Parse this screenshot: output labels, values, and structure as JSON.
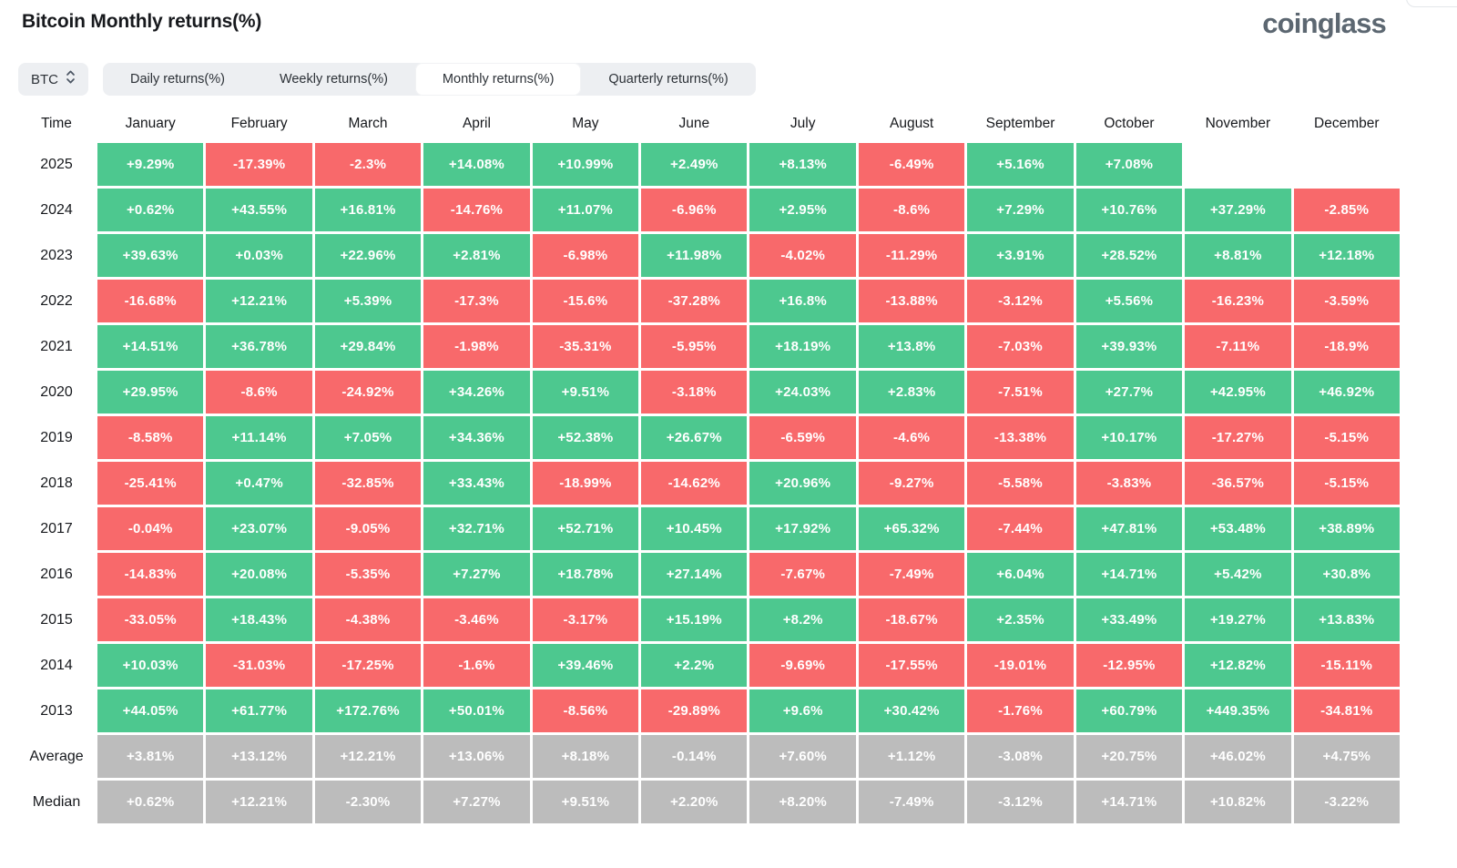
{
  "header": {
    "title": "Bitcoin Monthly returns(%)",
    "logo_text": "coinglass"
  },
  "controls": {
    "symbol": "BTC",
    "tabs": [
      {
        "label": "Daily returns(%)",
        "active": false
      },
      {
        "label": "Weekly returns(%)",
        "active": false
      },
      {
        "label": "Monthly returns(%)",
        "active": true
      },
      {
        "label": "Quarterly returns(%)",
        "active": false
      }
    ]
  },
  "colors": {
    "positive": "#4dc88f",
    "negative": "#f8696b",
    "summary": "#bcbcbc"
  },
  "table": {
    "corner_label": "Time",
    "months": [
      "January",
      "February",
      "March",
      "April",
      "May",
      "June",
      "July",
      "August",
      "September",
      "October",
      "November",
      "December"
    ],
    "rows": [
      {
        "label": "2025",
        "type": "year",
        "values": [
          "+9.29%",
          "-17.39%",
          "-2.3%",
          "+14.08%",
          "+10.99%",
          "+2.49%",
          "+8.13%",
          "-6.49%",
          "+5.16%",
          "+7.08%",
          "",
          ""
        ]
      },
      {
        "label": "2024",
        "type": "year",
        "values": [
          "+0.62%",
          "+43.55%",
          "+16.81%",
          "-14.76%",
          "+11.07%",
          "-6.96%",
          "+2.95%",
          "-8.6%",
          "+7.29%",
          "+10.76%",
          "+37.29%",
          "-2.85%"
        ]
      },
      {
        "label": "2023",
        "type": "year",
        "values": [
          "+39.63%",
          "+0.03%",
          "+22.96%",
          "+2.81%",
          "-6.98%",
          "+11.98%",
          "-4.02%",
          "-11.29%",
          "+3.91%",
          "+28.52%",
          "+8.81%",
          "+12.18%"
        ]
      },
      {
        "label": "2022",
        "type": "year",
        "values": [
          "-16.68%",
          "+12.21%",
          "+5.39%",
          "-17.3%",
          "-15.6%",
          "-37.28%",
          "+16.8%",
          "-13.88%",
          "-3.12%",
          "+5.56%",
          "-16.23%",
          "-3.59%"
        ]
      },
      {
        "label": "2021",
        "type": "year",
        "values": [
          "+14.51%",
          "+36.78%",
          "+29.84%",
          "-1.98%",
          "-35.31%",
          "-5.95%",
          "+18.19%",
          "+13.8%",
          "-7.03%",
          "+39.93%",
          "-7.11%",
          "-18.9%"
        ]
      },
      {
        "label": "2020",
        "type": "year",
        "values": [
          "+29.95%",
          "-8.6%",
          "-24.92%",
          "+34.26%",
          "+9.51%",
          "-3.18%",
          "+24.03%",
          "+2.83%",
          "-7.51%",
          "+27.7%",
          "+42.95%",
          "+46.92%"
        ]
      },
      {
        "label": "2019",
        "type": "year",
        "values": [
          "-8.58%",
          "+11.14%",
          "+7.05%",
          "+34.36%",
          "+52.38%",
          "+26.67%",
          "-6.59%",
          "-4.6%",
          "-13.38%",
          "+10.17%",
          "-17.27%",
          "-5.15%"
        ]
      },
      {
        "label": "2018",
        "type": "year",
        "values": [
          "-25.41%",
          "+0.47%",
          "-32.85%",
          "+33.43%",
          "-18.99%",
          "-14.62%",
          "+20.96%",
          "-9.27%",
          "-5.58%",
          "-3.83%",
          "-36.57%",
          "-5.15%"
        ]
      },
      {
        "label": "2017",
        "type": "year",
        "values": [
          "-0.04%",
          "+23.07%",
          "-9.05%",
          "+32.71%",
          "+52.71%",
          "+10.45%",
          "+17.92%",
          "+65.32%",
          "-7.44%",
          "+47.81%",
          "+53.48%",
          "+38.89%"
        ]
      },
      {
        "label": "2016",
        "type": "year",
        "values": [
          "-14.83%",
          "+20.08%",
          "-5.35%",
          "+7.27%",
          "+18.78%",
          "+27.14%",
          "-7.67%",
          "-7.49%",
          "+6.04%",
          "+14.71%",
          "+5.42%",
          "+30.8%"
        ]
      },
      {
        "label": "2015",
        "type": "year",
        "values": [
          "-33.05%",
          "+18.43%",
          "-4.38%",
          "-3.46%",
          "-3.17%",
          "+15.19%",
          "+8.2%",
          "-18.67%",
          "+2.35%",
          "+33.49%",
          "+19.27%",
          "+13.83%"
        ]
      },
      {
        "label": "2014",
        "type": "year",
        "values": [
          "+10.03%",
          "-31.03%",
          "-17.25%",
          "-1.6%",
          "+39.46%",
          "+2.2%",
          "-9.69%",
          "-17.55%",
          "-19.01%",
          "-12.95%",
          "+12.82%",
          "-15.11%"
        ]
      },
      {
        "label": "2013",
        "type": "year",
        "values": [
          "+44.05%",
          "+61.77%",
          "+172.76%",
          "+50.01%",
          "-8.56%",
          "-29.89%",
          "+9.6%",
          "+30.42%",
          "-1.76%",
          "+60.79%",
          "+449.35%",
          "-34.81%"
        ]
      },
      {
        "label": "Average",
        "type": "summary",
        "values": [
          "+3.81%",
          "+13.12%",
          "+12.21%",
          "+13.06%",
          "+8.18%",
          "-0.14%",
          "+7.60%",
          "+1.12%",
          "-3.08%",
          "+20.75%",
          "+46.02%",
          "+4.75%"
        ]
      },
      {
        "label": "Median",
        "type": "summary",
        "values": [
          "+0.62%",
          "+12.21%",
          "-2.30%",
          "+7.27%",
          "+9.51%",
          "+2.20%",
          "+8.20%",
          "-7.49%",
          "-3.12%",
          "+14.71%",
          "+10.82%",
          "-3.22%"
        ]
      }
    ]
  }
}
